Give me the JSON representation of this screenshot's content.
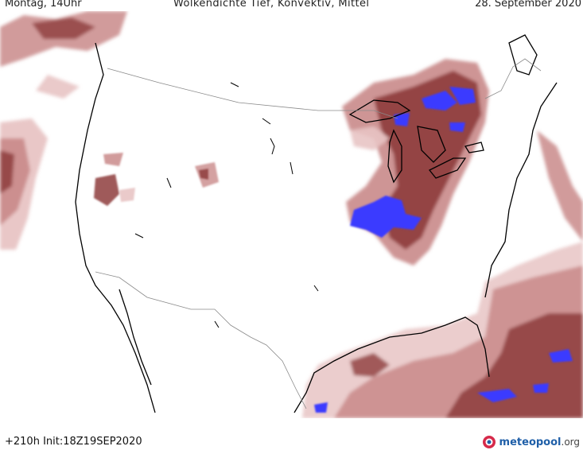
{
  "header": {
    "day_time": "Montag, 14Uhr",
    "title": "Wolkendichte  Tief, Konvektiv, Mittel",
    "date": "28. September 2020"
  },
  "footer": {
    "run_info": "+210h  Init:18Z19SEP2020",
    "logo_main": "meteopool",
    "logo_tld": ".org"
  },
  "colors": {
    "cloud_light": "#e8c4c4",
    "cloud_mid": "#c98a8a",
    "cloud_dark": "#8e3d3d",
    "cloud_dense": "#3b3bff",
    "coast": "#000000",
    "border": "#8a8a8a"
  }
}
